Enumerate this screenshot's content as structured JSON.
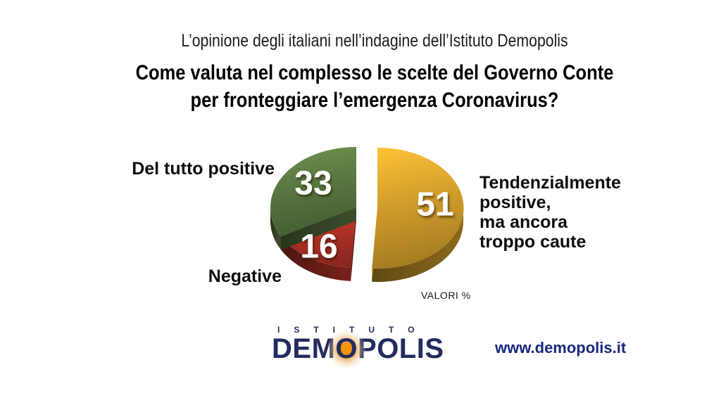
{
  "header": {
    "subtitle": "L’opinione degli italiani nell’indagine dell’Istituto Demopolis",
    "title_line1": "Come valuta nel complesso le scelte del Governo Conte",
    "title_line2": "per fronteggiare l’emergenza Coronavirus?"
  },
  "chart_data": {
    "type": "pie",
    "title": "Come valuta nel complesso le scelte del Governo Conte per fronteggiare l’emergenza Coronavirus?",
    "unit_label": "VALORI %",
    "total": 100,
    "labels_on_slices": true,
    "legend_position": "around",
    "slices": [
      {
        "id": "tendenzialmente-positive",
        "label": "Tendenzialmente positive, ma ancora troppo caute",
        "value": 51,
        "color": "#D5A02C",
        "exploded": true
      },
      {
        "id": "del-tutto-positive",
        "label": "Del tutto positive",
        "value": 33,
        "color": "#5A7841",
        "exploded": false
      },
      {
        "id": "negative",
        "label": "Negative",
        "value": 16,
        "color": "#B23227",
        "exploded": false
      }
    ]
  },
  "labels": {
    "left_top": "Del tutto positive",
    "left_bottom": "Negative",
    "right_line1": "Tendenzialmente",
    "right_line2": "positive,",
    "right_line3": "ma ancora",
    "right_line4": "troppo caute",
    "valori": "VALORI %"
  },
  "footer": {
    "logo_top": "ISTITUTO",
    "logo_d1": "DEM",
    "logo_o": "O",
    "logo_d2": "POLIS",
    "website": "www.demopolis.it",
    "navy": "#232C5F",
    "orange": "#F2940C"
  }
}
